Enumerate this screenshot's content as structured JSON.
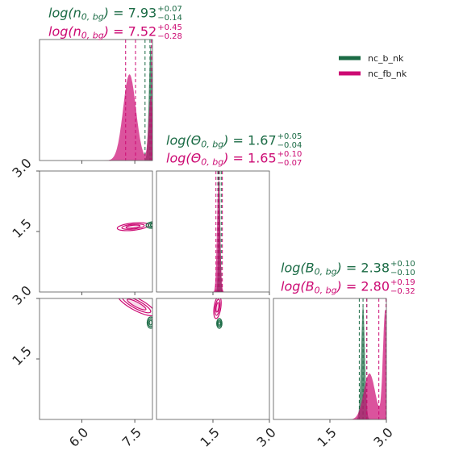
{
  "colors": {
    "series_a": "#1b6b45",
    "series_b": "#cc0a73"
  },
  "chart_data": {
    "type": "corner",
    "parameters": [
      {
        "tex_name": "log(n",
        "sub": "0, bg",
        "close": ")",
        "ticks": [
          "6.0",
          "7.5"
        ],
        "range": [
          4.8,
          8.0
        ]
      },
      {
        "tex_name": "log(Θ",
        "sub": "0, bg",
        "close": ")",
        "ticks": [
          "1.5",
          "3.0"
        ],
        "range": [
          0.0,
          3.0
        ]
      },
      {
        "tex_name": "log(B",
        "sub": "0, bg",
        "close": ")",
        "ticks": [
          "1.5",
          "3.0"
        ],
        "range": [
          0.0,
          3.0
        ]
      }
    ],
    "yaxis_ticks": [
      "3.0",
      "1.5"
    ],
    "series": [
      {
        "name": "nc_b_nk",
        "color": "#1b6b45",
        "summaries": [
          {
            "median": "7.93",
            "plus": "+0.07",
            "minus": "−0.14"
          },
          {
            "median": "1.67",
            "plus": "+0.05",
            "minus": "−0.04"
          },
          {
            "median": "2.38",
            "plus": "+0.10",
            "minus": "−0.10"
          }
        ],
        "quantiles": [
          [
            7.79,
            7.93,
            8.0
          ],
          [
            1.63,
            1.67,
            1.72
          ],
          [
            2.28,
            2.38,
            2.48
          ]
        ],
        "density_mode": [
          7.95,
          1.67,
          2.38
        ]
      },
      {
        "name": "nc_fb_nk",
        "color": "#cc0a73",
        "summaries": [
          {
            "median": "7.52",
            "plus": "+0.45",
            "minus": "−0.28"
          },
          {
            "median": "1.65",
            "plus": "+0.10",
            "minus": "−0.07"
          },
          {
            "median": "2.80",
            "plus": "+0.19",
            "minus": "−0.32"
          }
        ],
        "quantiles": [
          [
            7.24,
            7.52,
            7.97
          ],
          [
            1.58,
            1.65,
            1.75
          ],
          [
            2.48,
            2.8,
            2.99
          ]
        ],
        "density_mode": [
          7.35,
          1.65,
          2.95
        ]
      }
    ],
    "legend": {
      "placement": "top-right",
      "entries": [
        "nc_b_nk",
        "nc_fb_nk"
      ]
    }
  }
}
